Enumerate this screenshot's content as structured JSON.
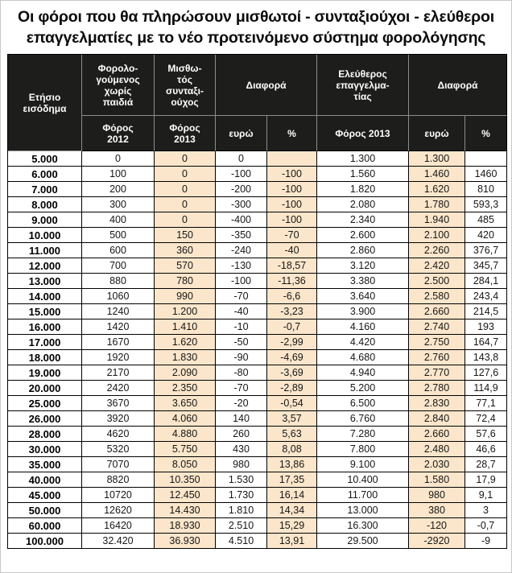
{
  "title": {
    "line1": "Οι φόροι που θα πληρώσουν μισθωτοί - συνταξιούχοι - ελεύθεροι",
    "line2": "επαγγελματίες με το νέο προτεινόμενο σύστημα φορολόγησης"
  },
  "colors": {
    "header_bg": "#1d1d1b",
    "header_text": "#ffffff",
    "shaded_column": "#fbe6cb",
    "grid_line": "#000000"
  },
  "table": {
    "headers": {
      "income": "Ετήσιο\nεισόδημα",
      "taxpayer_no_children": "Φορολο-\nγούμενος\nχωρίς\nπαιδιά",
      "employee_pensioner": "Μισθω-\nτός\nσυνταξι-\nούχος",
      "difference1": "Διαφορά",
      "freelancer": "Ελεύθερος\nεπαγγελμα-\nτίας",
      "difference2": "Διαφορά"
    },
    "subheaders": {
      "tax_2012": "Φόρος\n2012",
      "tax_2013_employee": "Φόρος\n2013",
      "euro1": "ευρώ",
      "pct1": "%",
      "tax_2013_freelancer": "Φόρος 2013",
      "euro2": "ευρώ",
      "pct2": "%"
    },
    "col_keys": [
      "income",
      "tax-2012",
      "tax-2013-employee",
      "diff1-euro",
      "diff1-pct",
      "tax-2013-freelancer",
      "diff2-euro",
      "diff2-pct"
    ],
    "shaded_column_indexes": [
      2,
      4,
      6
    ]
  },
  "chart_data": {
    "type": "table",
    "title": "Οι φόροι που θα πληρώσουν μισθωτοί - συνταξιούχοι - ελεύθεροι επαγγελματίες με το νέο προτεινόμενο σύστημα φορολόγησης",
    "columns": [
      "Ετήσιο εισόδημα",
      "Φορολογούμενος χωρίς παιδιά — Φόρος 2012",
      "Μισθωτός συνταξιούχος — Φόρος 2013",
      "Διαφορά ευρώ",
      "Διαφορά %",
      "Ελεύθερος επαγγελματίας — Φόρος 2013",
      "Διαφορά ευρώ",
      "Διαφορά %"
    ],
    "rows": [
      [
        "5.000",
        "0",
        "0",
        "0",
        "",
        "1.300",
        "1.300",
        ""
      ],
      [
        "6.000",
        "100",
        "0",
        "-100",
        "-100",
        "1.560",
        "1.460",
        "1460"
      ],
      [
        "7.000",
        "200",
        "0",
        "-200",
        "-100",
        "1.820",
        "1.620",
        "810"
      ],
      [
        "8.000",
        "300",
        "0",
        "-300",
        "-100",
        "2.080",
        "1.780",
        "593,3"
      ],
      [
        "9.000",
        "400",
        "0",
        "-400",
        "-100",
        "2.340",
        "1.940",
        "485"
      ],
      [
        "10.000",
        "500",
        "150",
        "-350",
        "-70",
        "2.600",
        "2.100",
        "420"
      ],
      [
        "11.000",
        "600",
        "360",
        "-240",
        "-40",
        "2.860",
        "2.260",
        "376,7"
      ],
      [
        "12.000",
        "700",
        "570",
        "-130",
        "-18,57",
        "3.120",
        "2.420",
        "345,7"
      ],
      [
        "13.000",
        "880",
        "780",
        "-100",
        "-11,36",
        "3.380",
        "2.500",
        "284,1"
      ],
      [
        "14.000",
        "1060",
        "990",
        "-70",
        "-6,6",
        "3.640",
        "2.580",
        "243,4"
      ],
      [
        "15.000",
        "1240",
        "1.200",
        "-40",
        "-3,23",
        "3.900",
        "2.660",
        "214,5"
      ],
      [
        "16.000",
        "1420",
        "1.410",
        "-10",
        "-0,7",
        "4.160",
        "2.740",
        "193"
      ],
      [
        "17.000",
        "1670",
        "1.620",
        "-50",
        "-2,99",
        "4.420",
        "2.750",
        "164,7"
      ],
      [
        "18.000",
        "1920",
        "1.830",
        "-90",
        "-4,69",
        "4.680",
        "2.760",
        "143,8"
      ],
      [
        "19.000",
        "2170",
        "2.090",
        "-80",
        "-3,69",
        "4.940",
        "2.770",
        "127,6"
      ],
      [
        "20.000",
        "2420",
        "2.350",
        "-70",
        "-2,89",
        "5.200",
        "2.780",
        "114,9"
      ],
      [
        "25.000",
        "3670",
        "3.650",
        "-20",
        "-0,54",
        "6.500",
        "2.830",
        "77,1"
      ],
      [
        "26.000",
        "3920",
        "4.060",
        "140",
        "3,57",
        "6.760",
        "2.840",
        "72,4"
      ],
      [
        "28.000",
        "4620",
        "4.880",
        "260",
        "5,63",
        "7.280",
        "2.660",
        "57,6"
      ],
      [
        "30.000",
        "5320",
        "5.750",
        "430",
        "8,08",
        "7.800",
        "2.480",
        "46,6"
      ],
      [
        "35.000",
        "7070",
        "8.050",
        "980",
        "13,86",
        "9.100",
        "2.030",
        "28,7"
      ],
      [
        "40.000",
        "8820",
        "10.350",
        "1.530",
        "17,35",
        "10.400",
        "1.580",
        "17,9"
      ],
      [
        "45.000",
        "10720",
        "12.450",
        "1.730",
        "16,14",
        "11.700",
        "980",
        "9,1"
      ],
      [
        "50.000",
        "12620",
        "14.430",
        "1.810",
        "14,34",
        "13.000",
        "380",
        "3"
      ],
      [
        "60.000",
        "16420",
        "18.930",
        "2.510",
        "15,29",
        "16.300",
        "-120",
        "-0,7"
      ],
      [
        "100.000",
        "32.420",
        "36.930",
        "4.510",
        "13,91",
        "29.500",
        "-2920",
        "-9"
      ]
    ]
  }
}
